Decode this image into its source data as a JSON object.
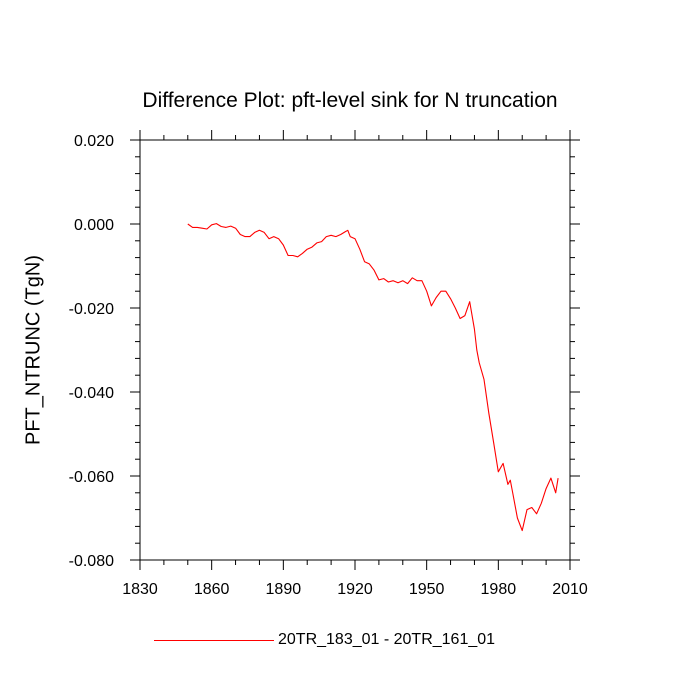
{
  "chart_data": {
    "type": "line",
    "title": "Difference Plot: pft-level sink for N truncation",
    "xlabel": "",
    "ylabel": "PFT_NTRUNC  (TgN)",
    "xlim": [
      1830,
      2010
    ],
    "ylim": [
      -0.08,
      0.02
    ],
    "xticks": [
      1830,
      1860,
      1890,
      1920,
      1950,
      1980,
      2010
    ],
    "yticks": [
      -0.08,
      -0.06,
      -0.04,
      -0.02,
      0.0,
      0.02
    ],
    "xtick_labels": [
      "1830",
      "1860",
      "1890",
      "1920",
      "1950",
      "1980",
      "2010"
    ],
    "ytick_labels": [
      "-0.080",
      "-0.060",
      "-0.040",
      "-0.020",
      "0.000",
      "0.020"
    ],
    "grid": false,
    "legend_position": "bottom",
    "series": [
      {
        "name": "20TR_183_01 - 20TR_161_01",
        "color": "#ff0000",
        "x": [
          1850,
          1852,
          1854,
          1856,
          1858,
          1860,
          1862,
          1864,
          1866,
          1868,
          1870,
          1872,
          1874,
          1876,
          1878,
          1880,
          1882,
          1884,
          1886,
          1888,
          1890,
          1892,
          1894,
          1896,
          1898,
          1900,
          1902,
          1904,
          1906,
          1908,
          1910,
          1912,
          1914,
          1916,
          1917,
          1918,
          1920,
          1922,
          1924,
          1926,
          1928,
          1930,
          1932,
          1934,
          1936,
          1938,
          1940,
          1942,
          1944,
          1946,
          1948,
          1950,
          1952,
          1954,
          1956,
          1958,
          1960,
          1962,
          1964,
          1966,
          1968,
          1970,
          1971,
          1972,
          1974,
          1976,
          1978,
          1980,
          1982,
          1984,
          1985,
          1986,
          1988,
          1990,
          1992,
          1994,
          1996,
          1998,
          2000,
          2002,
          2004,
          2005
        ],
        "y": [
          0.0,
          -0.0008,
          -0.0008,
          -0.001,
          -0.0012,
          -0.0002,
          0.0001,
          -0.0006,
          -0.0008,
          -0.0005,
          -0.001,
          -0.0025,
          -0.003,
          -0.003,
          -0.002,
          -0.0015,
          -0.002,
          -0.0035,
          -0.003,
          -0.0035,
          -0.005,
          -0.0075,
          -0.0075,
          -0.0078,
          -0.007,
          -0.006,
          -0.0055,
          -0.0045,
          -0.0042,
          -0.003,
          -0.0027,
          -0.003,
          -0.0025,
          -0.0018,
          -0.0015,
          -0.003,
          -0.0035,
          -0.006,
          -0.009,
          -0.0095,
          -0.011,
          -0.0133,
          -0.013,
          -0.0138,
          -0.0135,
          -0.014,
          -0.0135,
          -0.0142,
          -0.0128,
          -0.0135,
          -0.0135,
          -0.016,
          -0.0195,
          -0.0175,
          -0.016,
          -0.016,
          -0.0178,
          -0.02,
          -0.0225,
          -0.0218,
          -0.0185,
          -0.025,
          -0.03,
          -0.033,
          -0.037,
          -0.045,
          -0.052,
          -0.059,
          -0.057,
          -0.062,
          -0.061,
          -0.064,
          -0.07,
          -0.073,
          -0.068,
          -0.0675,
          -0.069,
          -0.0665,
          -0.063,
          -0.0605,
          -0.064,
          -0.0605
        ]
      }
    ]
  }
}
